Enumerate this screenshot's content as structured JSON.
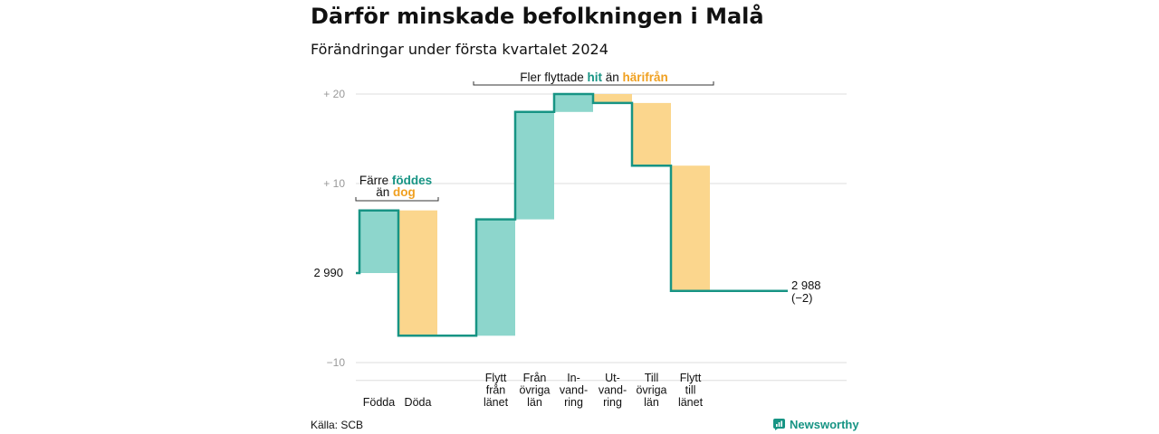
{
  "title": "Därför minskade befolkningen i Malå",
  "subtitle": "Förändringar under första kvartalet 2024",
  "source": "Källa: SCB",
  "brand": "Newsworthy",
  "colors": {
    "teal": "#179484",
    "teal_fill": "#8dd6cc",
    "orange_fill": "#fbd68d",
    "orange_text": "#f0a020",
    "grid": "#dddddd",
    "axis_text": "#999999"
  },
  "chart_data": {
    "type": "waterfall",
    "baseline_value": 2990,
    "baseline_label": "2 990",
    "end_label": "2 988",
    "end_change": "(−2)",
    "ylim": [
      -12,
      22
    ],
    "yticks": [
      {
        "value": 20,
        "label": "+ 20"
      },
      {
        "value": 10,
        "label": "+ 10"
      },
      {
        "value": -10,
        "label": "−10"
      }
    ],
    "steps": [
      {
        "label": [
          "Födda"
        ],
        "change": 7,
        "kind": "in"
      },
      {
        "label": [
          "Döda"
        ],
        "change": -14,
        "kind": "out"
      },
      {
        "label": [
          "Flytt",
          "från",
          "länet"
        ],
        "change": 13,
        "kind": "in"
      },
      {
        "label": [
          "Från",
          "övriga",
          "län"
        ],
        "change": 12,
        "kind": "in"
      },
      {
        "label": [
          "In-",
          "vand-",
          "ring"
        ],
        "change": 2,
        "kind": "in"
      },
      {
        "label": [
          "Ut-",
          "vand-",
          "ring"
        ],
        "change": -1,
        "kind": "out"
      },
      {
        "label": [
          "Till",
          "övriga",
          "län"
        ],
        "change": -7,
        "kind": "out"
      },
      {
        "label": [
          "Flytt",
          "till",
          "länet"
        ],
        "change": -14,
        "kind": "out"
      }
    ],
    "annotations": [
      {
        "parts": [
          {
            "text": "Färre",
            "color": "#111111"
          },
          {
            "text": "föddes",
            "color": "#179484",
            "bold": true
          }
        ],
        "parts2": [
          {
            "text": "än",
            "color": "#111111"
          },
          {
            "text": "dog",
            "color": "#f0a020",
            "bold": true
          }
        ]
      },
      {
        "parts": [
          {
            "text": "Fler flyttade",
            "color": "#111111"
          },
          {
            "text": "hit",
            "color": "#179484",
            "bold": true
          },
          {
            "text": "än",
            "color": "#111111"
          },
          {
            "text": "härifrån",
            "color": "#f0a020",
            "bold": true
          }
        ]
      }
    ]
  }
}
